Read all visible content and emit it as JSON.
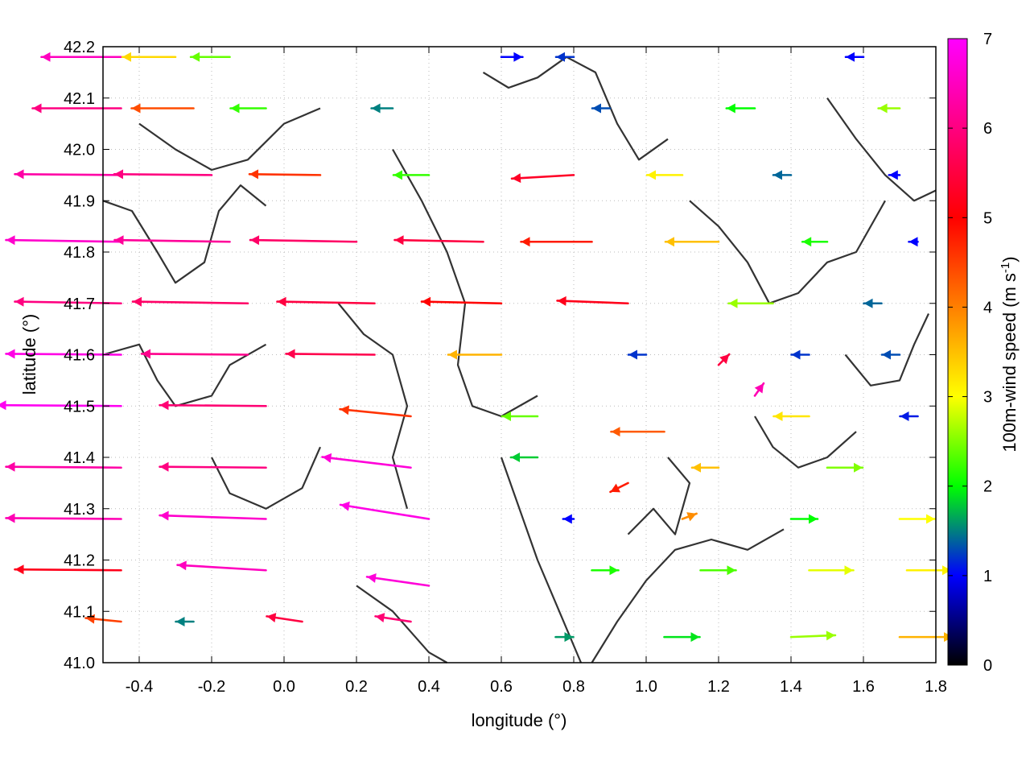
{
  "chart_data": {
    "type": "vector-field",
    "title": "",
    "xlabel": "longitude (°)",
    "ylabel": "latitude (°)",
    "colorbar_label_main": "100m-wind speed (m s",
    "colorbar_label_sup": "-1",
    "colorbar_label_end": ")",
    "xlim": [
      -0.5,
      1.8
    ],
    "ylim": [
      41.0,
      42.2
    ],
    "xticks": [
      "-0.4",
      "-0.2",
      "0.0",
      "0.2",
      "0.4",
      "0.6",
      "0.8",
      "1.0",
      "1.2",
      "1.4",
      "1.6",
      "1.8"
    ],
    "yticks": [
      "41.0",
      "41.1",
      "41.2",
      "41.3",
      "41.4",
      "41.5",
      "41.6",
      "41.7",
      "41.8",
      "41.9",
      "42.0",
      "42.1",
      "42.2"
    ],
    "colorbar_range": [
      0,
      7
    ],
    "colorbar_ticks": [
      "0",
      "1",
      "2",
      "3",
      "4",
      "5",
      "6",
      "7"
    ],
    "colormap": [
      "#000000",
      "#0000ff",
      "#00ff00",
      "#ffff00",
      "#ff8000",
      "#ff0000",
      "#ff00ff"
    ],
    "grid": true,
    "contour_color": "#333333",
    "vectors": [
      {
        "lon": -0.45,
        "lat": 42.18,
        "u": -4.5,
        "v": 0.0,
        "speed": 6.5
      },
      {
        "lon": -0.3,
        "lat": 42.18,
        "u": -3.0,
        "v": 0.0,
        "speed": 3.3
      },
      {
        "lon": -0.15,
        "lat": 42.18,
        "u": -2.2,
        "v": 0.0,
        "speed": 2.4
      },
      {
        "lon": 0.6,
        "lat": 42.18,
        "u": 1.2,
        "v": 0.0,
        "speed": 1.0
      },
      {
        "lon": 0.8,
        "lat": 42.18,
        "u": -1.0,
        "v": 0.0,
        "speed": 1.2
      },
      {
        "lon": 1.6,
        "lat": 42.18,
        "u": -1.0,
        "v": 0.0,
        "speed": 1.0
      },
      {
        "lon": -0.45,
        "lat": 42.08,
        "u": -5.0,
        "v": 0.0,
        "speed": 6.0
      },
      {
        "lon": -0.25,
        "lat": 42.08,
        "u": -3.5,
        "v": 0.0,
        "speed": 4.4
      },
      {
        "lon": -0.05,
        "lat": 42.08,
        "u": -2.0,
        "v": 0.0,
        "speed": 2.2
      },
      {
        "lon": 0.3,
        "lat": 42.08,
        "u": -1.2,
        "v": 0.0,
        "speed": 1.5
      },
      {
        "lon": 0.9,
        "lat": 42.08,
        "u": -1.0,
        "v": 0.0,
        "speed": 1.3
      },
      {
        "lon": 1.3,
        "lat": 42.08,
        "u": -1.6,
        "v": 0.0,
        "speed": 2.0
      },
      {
        "lon": 1.7,
        "lat": 42.08,
        "u": -1.2,
        "v": 0.0,
        "speed": 2.6
      },
      {
        "lon": -0.45,
        "lat": 41.95,
        "u": -6.0,
        "v": 0.05,
        "speed": 6.3
      },
      {
        "lon": -0.2,
        "lat": 41.95,
        "u": -5.5,
        "v": 0.05,
        "speed": 6.0
      },
      {
        "lon": 0.1,
        "lat": 41.95,
        "u": -4.0,
        "v": 0.05,
        "speed": 4.6
      },
      {
        "lon": 0.4,
        "lat": 41.95,
        "u": -2.0,
        "v": 0.0,
        "speed": 2.2
      },
      {
        "lon": 0.8,
        "lat": 41.95,
        "u": -3.5,
        "v": -0.2,
        "speed": 5.3
      },
      {
        "lon": 1.1,
        "lat": 41.95,
        "u": -2.0,
        "v": 0.0,
        "speed": 3.1
      },
      {
        "lon": 1.4,
        "lat": 41.95,
        "u": -1.0,
        "v": 0.0,
        "speed": 1.4
      },
      {
        "lon": 1.7,
        "lat": 41.95,
        "u": -0.6,
        "v": 0.0,
        "speed": 1.0
      },
      {
        "lon": -0.45,
        "lat": 41.82,
        "u": -6.5,
        "v": 0.1,
        "speed": 6.6
      },
      {
        "lon": -0.15,
        "lat": 41.82,
        "u": -6.5,
        "v": 0.1,
        "speed": 6.2
      },
      {
        "lon": 0.2,
        "lat": 41.82,
        "u": -6.0,
        "v": 0.1,
        "speed": 5.8
      },
      {
        "lon": 0.55,
        "lat": 41.82,
        "u": -5.0,
        "v": 0.1,
        "speed": 5.5
      },
      {
        "lon": 0.85,
        "lat": 41.82,
        "u": -4.0,
        "v": 0.0,
        "speed": 4.8
      },
      {
        "lon": 1.2,
        "lat": 41.82,
        "u": -3.0,
        "v": 0.0,
        "speed": 3.5
      },
      {
        "lon": 1.5,
        "lat": 41.82,
        "u": -1.4,
        "v": 0.0,
        "speed": 2.1
      },
      {
        "lon": 1.75,
        "lat": 41.82,
        "u": -0.5,
        "v": 0.0,
        "speed": 1.0
      },
      {
        "lon": -0.45,
        "lat": 41.7,
        "u": -6.0,
        "v": 0.1,
        "speed": 6.0
      },
      {
        "lon": -0.1,
        "lat": 41.7,
        "u": -6.5,
        "v": 0.1,
        "speed": 5.8
      },
      {
        "lon": 0.25,
        "lat": 41.7,
        "u": -5.5,
        "v": 0.1,
        "speed": 5.5
      },
      {
        "lon": 0.6,
        "lat": 41.7,
        "u": -4.5,
        "v": 0.1,
        "speed": 5.0
      },
      {
        "lon": 0.95,
        "lat": 41.7,
        "u": -4.0,
        "v": 0.15,
        "speed": 5.2
      },
      {
        "lon": 1.35,
        "lat": 41.7,
        "u": -2.5,
        "v": 0.0,
        "speed": 2.6
      },
      {
        "lon": 1.65,
        "lat": 41.7,
        "u": -1.0,
        "v": 0.0,
        "speed": 1.4
      },
      {
        "lon": -0.45,
        "lat": 41.6,
        "u": -6.5,
        "v": 0.05,
        "speed": 6.8
      },
      {
        "lon": -0.1,
        "lat": 41.6,
        "u": -6.0,
        "v": 0.05,
        "speed": 6.1
      },
      {
        "lon": 0.25,
        "lat": 41.6,
        "u": -5.0,
        "v": 0.05,
        "speed": 5.6
      },
      {
        "lon": 0.6,
        "lat": 41.6,
        "u": -3.0,
        "v": 0.0,
        "speed": 3.6
      },
      {
        "lon": 1.0,
        "lat": 41.6,
        "u": -1.0,
        "v": 0.0,
        "speed": 1.2
      },
      {
        "lon": 1.2,
        "lat": 41.58,
        "u": 0.6,
        "v": 0.6,
        "speed": 5.5
      },
      {
        "lon": 1.3,
        "lat": 41.52,
        "u": 0.5,
        "v": 0.7,
        "speed": 6.4
      },
      {
        "lon": 1.45,
        "lat": 41.6,
        "u": -1.0,
        "v": 0.0,
        "speed": 1.2
      },
      {
        "lon": 1.7,
        "lat": 41.6,
        "u": -1.0,
        "v": 0.0,
        "speed": 1.3
      },
      {
        "lon": -0.45,
        "lat": 41.5,
        "u": -7.0,
        "v": 0.05,
        "speed": 6.9
      },
      {
        "lon": -0.05,
        "lat": 41.5,
        "u": -6.0,
        "v": 0.05,
        "speed": 5.9
      },
      {
        "lon": 0.35,
        "lat": 41.48,
        "u": -4.0,
        "v": 0.4,
        "speed": 4.6
      },
      {
        "lon": 0.7,
        "lat": 41.48,
        "u": -2.0,
        "v": 0.0,
        "speed": 2.4
      },
      {
        "lon": 1.05,
        "lat": 41.45,
        "u": -3.0,
        "v": 0.0,
        "speed": 4.3
      },
      {
        "lon": 1.45,
        "lat": 41.48,
        "u": -2.0,
        "v": 0.0,
        "speed": 3.2
      },
      {
        "lon": 1.75,
        "lat": 41.48,
        "u": -1.0,
        "v": 0.0,
        "speed": 1.1
      },
      {
        "lon": -0.45,
        "lat": 41.38,
        "u": -6.5,
        "v": 0.05,
        "speed": 6.3
      },
      {
        "lon": -0.05,
        "lat": 41.38,
        "u": -6.0,
        "v": 0.05,
        "speed": 6.0
      },
      {
        "lon": 0.35,
        "lat": 41.38,
        "u": -5.0,
        "v": 0.6,
        "speed": 6.7
      },
      {
        "lon": 0.7,
        "lat": 41.4,
        "u": -1.5,
        "v": 0.0,
        "speed": 1.8
      },
      {
        "lon": 0.95,
        "lat": 41.35,
        "u": -1.0,
        "v": -0.5,
        "speed": 4.8
      },
      {
        "lon": 1.2,
        "lat": 41.38,
        "u": -1.5,
        "v": 0.0,
        "speed": 3.5
      },
      {
        "lon": 1.5,
        "lat": 41.38,
        "u": 2.0,
        "v": 0.0,
        "speed": 2.5
      },
      {
        "lon": -0.45,
        "lat": 41.28,
        "u": -6.5,
        "v": 0.05,
        "speed": 6.4
      },
      {
        "lon": -0.05,
        "lat": 41.28,
        "u": -6.0,
        "v": 0.2,
        "speed": 6.6
      },
      {
        "lon": 0.4,
        "lat": 41.28,
        "u": -5.0,
        "v": 0.8,
        "speed": 6.8
      },
      {
        "lon": 0.8,
        "lat": 41.28,
        "u": -0.6,
        "v": 0.0,
        "speed": 1.0
      },
      {
        "lon": 1.1,
        "lat": 41.28,
        "u": 0.8,
        "v": 0.3,
        "speed": 3.9
      },
      {
        "lon": 1.4,
        "lat": 41.28,
        "u": 1.5,
        "v": 0.0,
        "speed": 2.0
      },
      {
        "lon": 1.7,
        "lat": 41.28,
        "u": 2.0,
        "v": 0.0,
        "speed": 3.0
      },
      {
        "lon": -0.45,
        "lat": 41.18,
        "u": -6.0,
        "v": 0.05,
        "speed": 5.2
      },
      {
        "lon": -0.05,
        "lat": 41.18,
        "u": -5.0,
        "v": 0.3,
        "speed": 6.5
      },
      {
        "lon": 0.4,
        "lat": 41.15,
        "u": -3.5,
        "v": 0.5,
        "speed": 6.7
      },
      {
        "lon": 0.85,
        "lat": 41.18,
        "u": 1.5,
        "v": 0.0,
        "speed": 2.1
      },
      {
        "lon": 1.15,
        "lat": 41.18,
        "u": 2.0,
        "v": 0.0,
        "speed": 2.3
      },
      {
        "lon": 1.45,
        "lat": 41.18,
        "u": 2.5,
        "v": 0.0,
        "speed": 2.9
      },
      {
        "lon": 1.72,
        "lat": 41.18,
        "u": 2.5,
        "v": 0.0,
        "speed": 3.1
      },
      {
        "lon": -0.45,
        "lat": 41.08,
        "u": -2.0,
        "v": 0.2,
        "speed": 4.5
      },
      {
        "lon": -0.25,
        "lat": 41.08,
        "u": -1.0,
        "v": 0.0,
        "speed": 1.5
      },
      {
        "lon": 0.05,
        "lat": 41.08,
        "u": -2.0,
        "v": 0.3,
        "speed": 5.5
      },
      {
        "lon": 0.35,
        "lat": 41.08,
        "u": -2.0,
        "v": 0.3,
        "speed": 5.9
      },
      {
        "lon": 0.75,
        "lat": 41.05,
        "u": 1.0,
        "v": 0.0,
        "speed": 1.6
      },
      {
        "lon": 1.05,
        "lat": 41.05,
        "u": 2.0,
        "v": 0.0,
        "speed": 1.9
      },
      {
        "lon": 1.4,
        "lat": 41.05,
        "u": 2.5,
        "v": 0.1,
        "speed": 2.6
      },
      {
        "lon": 1.7,
        "lat": 41.05,
        "u": 3.0,
        "v": 0.0,
        "speed": 3.6
      }
    ],
    "contours": [
      [
        [
          -0.5,
          41.9
        ],
        [
          -0.42,
          41.88
        ],
        [
          -0.35,
          41.8
        ],
        [
          -0.3,
          41.74
        ],
        [
          -0.22,
          41.78
        ],
        [
          -0.18,
          41.88
        ],
        [
          -0.12,
          41.93
        ],
        [
          -0.05,
          41.89
        ]
      ],
      [
        [
          -0.5,
          41.6
        ],
        [
          -0.4,
          41.62
        ],
        [
          -0.35,
          41.55
        ],
        [
          -0.3,
          41.5
        ],
        [
          -0.2,
          41.52
        ],
        [
          -0.15,
          41.58
        ],
        [
          -0.05,
          41.62
        ]
      ],
      [
        [
          -0.2,
          41.4
        ],
        [
          -0.15,
          41.33
        ],
        [
          -0.05,
          41.3
        ],
        [
          0.05,
          41.34
        ],
        [
          0.1,
          41.42
        ]
      ],
      [
        [
          0.2,
          41.15
        ],
        [
          0.3,
          41.1
        ],
        [
          0.4,
          41.02
        ],
        [
          0.45,
          41.0
        ]
      ],
      [
        [
          0.3,
          42.0
        ],
        [
          0.38,
          41.9
        ],
        [
          0.45,
          41.8
        ],
        [
          0.5,
          41.7
        ],
        [
          0.48,
          41.58
        ],
        [
          0.52,
          41.5
        ],
        [
          0.6,
          41.48
        ],
        [
          0.7,
          41.52
        ]
      ],
      [
        [
          0.6,
          41.4
        ],
        [
          0.65,
          41.3
        ],
        [
          0.7,
          41.2
        ],
        [
          0.76,
          41.1
        ],
        [
          0.82,
          41.0
        ]
      ],
      [
        [
          0.95,
          41.25
        ],
        [
          1.02,
          41.3
        ],
        [
          1.08,
          41.25
        ],
        [
          1.12,
          41.35
        ],
        [
          1.06,
          41.4
        ]
      ],
      [
        [
          0.85,
          41.0
        ],
        [
          0.92,
          41.08
        ],
        [
          1.0,
          41.16
        ],
        [
          1.08,
          41.22
        ],
        [
          1.18,
          41.24
        ],
        [
          1.28,
          41.22
        ],
        [
          1.38,
          41.26
        ]
      ],
      [
        [
          1.12,
          41.9
        ],
        [
          1.2,
          41.85
        ],
        [
          1.28,
          41.78
        ],
        [
          1.34,
          41.7
        ],
        [
          1.42,
          41.72
        ],
        [
          1.5,
          41.78
        ],
        [
          1.58,
          41.8
        ],
        [
          1.66,
          41.9
        ]
      ],
      [
        [
          0.55,
          42.15
        ],
        [
          0.62,
          42.12
        ],
        [
          0.7,
          42.14
        ],
        [
          0.78,
          42.18
        ],
        [
          0.86,
          42.15
        ],
        [
          0.92,
          42.05
        ],
        [
          0.98,
          41.98
        ],
        [
          1.06,
          42.02
        ]
      ],
      [
        [
          1.5,
          42.1
        ],
        [
          1.58,
          42.02
        ],
        [
          1.66,
          41.95
        ],
        [
          1.74,
          41.9
        ],
        [
          1.8,
          41.92
        ]
      ],
      [
        [
          1.55,
          41.6
        ],
        [
          1.62,
          41.54
        ],
        [
          1.7,
          41.55
        ],
        [
          1.74,
          41.62
        ],
        [
          1.78,
          41.68
        ]
      ],
      [
        [
          -0.4,
          42.05
        ],
        [
          -0.3,
          42.0
        ],
        [
          -0.2,
          41.96
        ],
        [
          -0.1,
          41.98
        ],
        [
          0.0,
          42.05
        ],
        [
          0.1,
          42.08
        ]
      ],
      [
        [
          0.15,
          41.7
        ],
        [
          0.22,
          41.64
        ],
        [
          0.3,
          41.6
        ],
        [
          0.34,
          41.5
        ],
        [
          0.3,
          41.4
        ],
        [
          0.34,
          41.3
        ]
      ],
      [
        [
          1.3,
          41.48
        ],
        [
          1.35,
          41.42
        ],
        [
          1.42,
          41.38
        ],
        [
          1.5,
          41.4
        ],
        [
          1.58,
          41.45
        ]
      ]
    ]
  }
}
